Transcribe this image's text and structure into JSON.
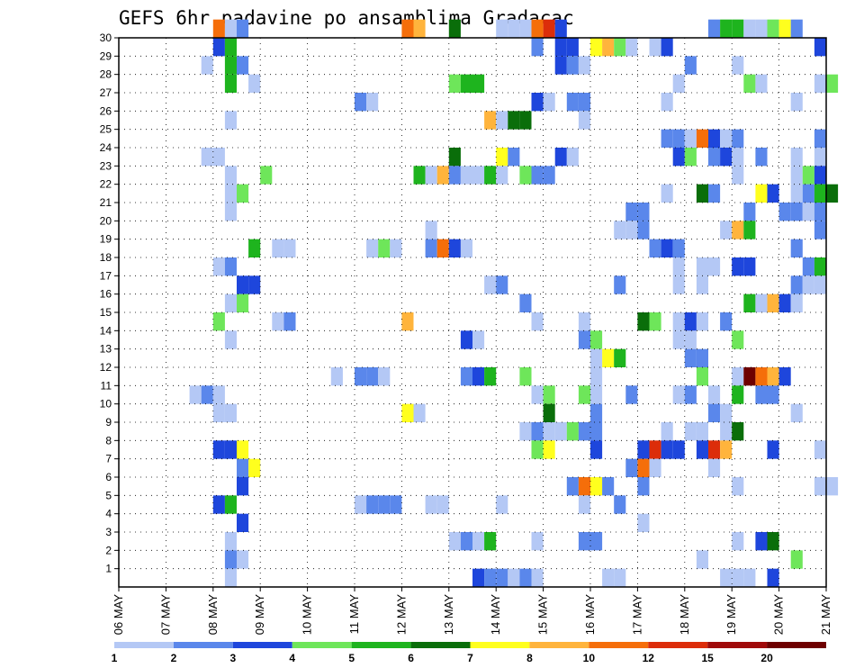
{
  "chart_data": {
    "type": "heatmap",
    "title": "GEFS 6hr padavine po ansamblima Gradacac",
    "xlabel": "",
    "ylabel": "",
    "x_ticks": [
      "06 MAY",
      "07 MAY",
      "08 MAY",
      "09 MAY",
      "10 MAY",
      "11 MAY",
      "12 MAY",
      "13 MAY",
      "14 MAY",
      "15 MAY",
      "16 MAY",
      "17 MAY",
      "18 MAY",
      "19 MAY",
      "20 MAY",
      "21 MAY"
    ],
    "y_ticks": [
      1,
      2,
      3,
      4,
      5,
      6,
      7,
      8,
      9,
      10,
      11,
      12,
      13,
      14,
      15,
      16,
      17,
      18,
      19,
      20,
      21,
      22,
      23,
      24,
      25,
      26,
      27,
      28,
      29,
      30
    ],
    "ylim": [
      0,
      30
    ],
    "steps_per_day": 4,
    "grid": true,
    "legend": {
      "position": "bottom",
      "levels": [
        1,
        2,
        3,
        4,
        5,
        6,
        7,
        8,
        10,
        12,
        15,
        20
      ],
      "colors": [
        "#b4c8f5",
        "#5a87eb",
        "#1e46dc",
        "#6ee65a",
        "#1eb41e",
        "#0a6e0a",
        "#ffff1e",
        "#ffb43c",
        "#f56e0a",
        "#dc2d0a",
        "#a00a0a",
        "#6e0000"
      ]
    },
    "colors": [
      "#b4c8f5",
      "#5a87eb",
      "#1e46dc",
      "#6ee65a",
      "#1eb41e",
      "#0a6e0a",
      "#ffff1e",
      "#ffb43c",
      "#f56e0a",
      "#dc2d0a",
      "#a00a0a",
      "#6e0000"
    ],
    "cells": [
      [
        8.0,
        30,
        9
      ],
      [
        8.25,
        30,
        1
      ],
      [
        8.5,
        30,
        2
      ],
      [
        12.0,
        30,
        9
      ],
      [
        12.25,
        30,
        8
      ],
      [
        13.0,
        30,
        6
      ],
      [
        14.0,
        30,
        1
      ],
      [
        14.25,
        30,
        1
      ],
      [
        14.5,
        30,
        1
      ],
      [
        14.75,
        30,
        9
      ],
      [
        15.0,
        30,
        10
      ],
      [
        15.25,
        30,
        3
      ],
      [
        18.5,
        30,
        2
      ],
      [
        18.75,
        30,
        5
      ],
      [
        19.0,
        30,
        5
      ],
      [
        19.25,
        30,
        1
      ],
      [
        19.5,
        30,
        1
      ],
      [
        19.75,
        30,
        4
      ],
      [
        20.0,
        30,
        7
      ],
      [
        20.25,
        30,
        2
      ],
      [
        8.0,
        29,
        3
      ],
      [
        8.25,
        29,
        5
      ],
      [
        14.75,
        29,
        2
      ],
      [
        15.25,
        29,
        3
      ],
      [
        15.5,
        29,
        3
      ],
      [
        16.0,
        29,
        7
      ],
      [
        16.25,
        29,
        8
      ],
      [
        16.5,
        29,
        4
      ],
      [
        16.75,
        29,
        1
      ],
      [
        17.25,
        29,
        1
      ],
      [
        17.5,
        29,
        3
      ],
      [
        20.75,
        29,
        3
      ],
      [
        7.75,
        28,
        1
      ],
      [
        8.25,
        28,
        5
      ],
      [
        8.5,
        28,
        2
      ],
      [
        15.25,
        28,
        3
      ],
      [
        15.5,
        28,
        2
      ],
      [
        15.75,
        28,
        1
      ],
      [
        18.0,
        28,
        2
      ],
      [
        19.0,
        28,
        1
      ],
      [
        8.25,
        27,
        5
      ],
      [
        8.75,
        27,
        1
      ],
      [
        13.0,
        27,
        4
      ],
      [
        13.25,
        27,
        5
      ],
      [
        13.5,
        27,
        5
      ],
      [
        17.75,
        27,
        1
      ],
      [
        19.25,
        27,
        4
      ],
      [
        19.5,
        27,
        1
      ],
      [
        20.75,
        27,
        1
      ],
      [
        21.0,
        27,
        4
      ],
      [
        11.0,
        26,
        2
      ],
      [
        11.25,
        26,
        1
      ],
      [
        14.75,
        26,
        3
      ],
      [
        15.0,
        26,
        1
      ],
      [
        15.5,
        26,
        2
      ],
      [
        15.75,
        26,
        2
      ],
      [
        17.5,
        26,
        1
      ],
      [
        20.25,
        26,
        1
      ],
      [
        8.25,
        25,
        1
      ],
      [
        13.75,
        25,
        8
      ],
      [
        14.0,
        25,
        1
      ],
      [
        14.25,
        25,
        6
      ],
      [
        14.5,
        25,
        6
      ],
      [
        15.75,
        25,
        1
      ],
      [
        17.5,
        24,
        2
      ],
      [
        17.75,
        24,
        2
      ],
      [
        18.0,
        24,
        1
      ],
      [
        18.25,
        24,
        9
      ],
      [
        18.5,
        24,
        3
      ],
      [
        18.75,
        24,
        1
      ],
      [
        19.0,
        24,
        2
      ],
      [
        20.75,
        24,
        2
      ],
      [
        7.75,
        23,
        1
      ],
      [
        8.0,
        23,
        1
      ],
      [
        13.0,
        23,
        6
      ],
      [
        14.0,
        23,
        7
      ],
      [
        14.25,
        23,
        2
      ],
      [
        15.25,
        23,
        3
      ],
      [
        15.5,
        23,
        1
      ],
      [
        17.75,
        23,
        3
      ],
      [
        18.0,
        23,
        4
      ],
      [
        18.5,
        23,
        2
      ],
      [
        18.75,
        23,
        3
      ],
      [
        19.0,
        23,
        1
      ],
      [
        19.5,
        23,
        2
      ],
      [
        20.25,
        23,
        1
      ],
      [
        20.75,
        23,
        1
      ],
      [
        8.25,
        22,
        1
      ],
      [
        9.0,
        22,
        4
      ],
      [
        12.25,
        22,
        5
      ],
      [
        12.5,
        22,
        1
      ],
      [
        12.75,
        22,
        8
      ],
      [
        13.0,
        22,
        2
      ],
      [
        13.25,
        22,
        1
      ],
      [
        13.5,
        22,
        1
      ],
      [
        13.75,
        22,
        5
      ],
      [
        14.0,
        22,
        1
      ],
      [
        14.5,
        22,
        4
      ],
      [
        14.75,
        22,
        2
      ],
      [
        15.0,
        22,
        2
      ],
      [
        19.0,
        22,
        1
      ],
      [
        20.25,
        22,
        1
      ],
      [
        20.5,
        22,
        4
      ],
      [
        20.75,
        22,
        3
      ],
      [
        8.25,
        21,
        1
      ],
      [
        8.5,
        21,
        4
      ],
      [
        17.5,
        21,
        1
      ],
      [
        18.25,
        21,
        6
      ],
      [
        18.5,
        21,
        2
      ],
      [
        19.5,
        21,
        7
      ],
      [
        19.75,
        21,
        3
      ],
      [
        20.25,
        21,
        1
      ],
      [
        20.5,
        21,
        2
      ],
      [
        20.75,
        21,
        5
      ],
      [
        21.0,
        21,
        6
      ],
      [
        8.25,
        20,
        1
      ],
      [
        16.75,
        20,
        2
      ],
      [
        17.0,
        20,
        2
      ],
      [
        19.25,
        20,
        2
      ],
      [
        20.0,
        20,
        2
      ],
      [
        20.25,
        20,
        2
      ],
      [
        20.5,
        20,
        1
      ],
      [
        20.75,
        20,
        2
      ],
      [
        12.5,
        19,
        1
      ],
      [
        16.5,
        19,
        1
      ],
      [
        16.75,
        19,
        1
      ],
      [
        17.0,
        19,
        2
      ],
      [
        18.75,
        19,
        1
      ],
      [
        19.0,
        19,
        8
      ],
      [
        19.25,
        19,
        5
      ],
      [
        20.75,
        19,
        2
      ],
      [
        8.75,
        18,
        5
      ],
      [
        9.25,
        18,
        1
      ],
      [
        9.5,
        18,
        1
      ],
      [
        11.25,
        18,
        1
      ],
      [
        11.5,
        18,
        4
      ],
      [
        11.75,
        18,
        1
      ],
      [
        12.5,
        18,
        2
      ],
      [
        12.75,
        18,
        9
      ],
      [
        13.0,
        18,
        3
      ],
      [
        13.25,
        18,
        1
      ],
      [
        17.25,
        18,
        2
      ],
      [
        17.5,
        18,
        3
      ],
      [
        17.75,
        18,
        2
      ],
      [
        20.25,
        18,
        2
      ],
      [
        8.0,
        17,
        1
      ],
      [
        8.25,
        17,
        2
      ],
      [
        17.75,
        17,
        1
      ],
      [
        18.25,
        17,
        1
      ],
      [
        18.5,
        17,
        1
      ],
      [
        19.0,
        17,
        3
      ],
      [
        19.25,
        17,
        3
      ],
      [
        20.5,
        17,
        2
      ],
      [
        20.75,
        17,
        5
      ],
      [
        8.5,
        16,
        3
      ],
      [
        8.75,
        16,
        3
      ],
      [
        13.75,
        16,
        1
      ],
      [
        14.0,
        16,
        2
      ],
      [
        16.5,
        16,
        2
      ],
      [
        17.75,
        16,
        1
      ],
      [
        18.25,
        16,
        1
      ],
      [
        20.25,
        16,
        2
      ],
      [
        20.5,
        16,
        1
      ],
      [
        20.75,
        16,
        1
      ],
      [
        8.25,
        15,
        1
      ],
      [
        8.5,
        15,
        4
      ],
      [
        14.5,
        15,
        2
      ],
      [
        19.25,
        15,
        5
      ],
      [
        19.5,
        15,
        1
      ],
      [
        19.75,
        15,
        8
      ],
      [
        20.0,
        15,
        3
      ],
      [
        20.25,
        15,
        1
      ],
      [
        8.0,
        14,
        4
      ],
      [
        9.25,
        14,
        1
      ],
      [
        9.5,
        14,
        2
      ],
      [
        12.0,
        14,
        8
      ],
      [
        14.75,
        14,
        1
      ],
      [
        15.75,
        14,
        1
      ],
      [
        17.0,
        14,
        6
      ],
      [
        17.25,
        14,
        4
      ],
      [
        17.75,
        14,
        1
      ],
      [
        18.0,
        14,
        3
      ],
      [
        18.25,
        14,
        1
      ],
      [
        18.75,
        14,
        2
      ],
      [
        8.25,
        13,
        1
      ],
      [
        13.25,
        13,
        3
      ],
      [
        13.5,
        13,
        1
      ],
      [
        15.75,
        13,
        2
      ],
      [
        16.0,
        13,
        4
      ],
      [
        17.75,
        13,
        1
      ],
      [
        18.0,
        13,
        1
      ],
      [
        19.0,
        13,
        4
      ],
      [
        16.0,
        12,
        1
      ],
      [
        16.25,
        12,
        7
      ],
      [
        16.5,
        12,
        5
      ],
      [
        18.0,
        12,
        2
      ],
      [
        18.25,
        12,
        2
      ],
      [
        10.5,
        11,
        1
      ],
      [
        11.0,
        11,
        2
      ],
      [
        11.25,
        11,
        2
      ],
      [
        11.5,
        11,
        1
      ],
      [
        13.25,
        11,
        2
      ],
      [
        13.5,
        11,
        3
      ],
      [
        13.75,
        11,
        5
      ],
      [
        14.5,
        11,
        4
      ],
      [
        16.0,
        11,
        1
      ],
      [
        18.25,
        11,
        4
      ],
      [
        19.0,
        11,
        1
      ],
      [
        19.25,
        11,
        12
      ],
      [
        19.5,
        11,
        9
      ],
      [
        19.75,
        11,
        8
      ],
      [
        20.0,
        11,
        3
      ],
      [
        7.5,
        10,
        1
      ],
      [
        7.75,
        10,
        2
      ],
      [
        8.0,
        10,
        1
      ],
      [
        14.75,
        10,
        1
      ],
      [
        15.0,
        10,
        4
      ],
      [
        15.75,
        10,
        4
      ],
      [
        16.0,
        10,
        1
      ],
      [
        16.75,
        10,
        2
      ],
      [
        17.75,
        10,
        1
      ],
      [
        18.0,
        10,
        2
      ],
      [
        18.5,
        10,
        1
      ],
      [
        19.0,
        10,
        5
      ],
      [
        19.5,
        10,
        2
      ],
      [
        19.75,
        10,
        2
      ],
      [
        8.0,
        9,
        1
      ],
      [
        8.25,
        9,
        1
      ],
      [
        12.0,
        9,
        7
      ],
      [
        12.25,
        9,
        1
      ],
      [
        15.0,
        9,
        6
      ],
      [
        16.0,
        9,
        2
      ],
      [
        18.5,
        9,
        2
      ],
      [
        18.75,
        9,
        1
      ],
      [
        20.25,
        9,
        1
      ],
      [
        14.5,
        8,
        1
      ],
      [
        14.75,
        8,
        2
      ],
      [
        15.0,
        8,
        1
      ],
      [
        15.25,
        8,
        1
      ],
      [
        15.5,
        8,
        4
      ],
      [
        15.75,
        8,
        2
      ],
      [
        16.0,
        8,
        2
      ],
      [
        17.5,
        8,
        1
      ],
      [
        18.0,
        8,
        1
      ],
      [
        18.25,
        8,
        1
      ],
      [
        18.75,
        8,
        1
      ],
      [
        19.0,
        8,
        6
      ],
      [
        8.0,
        7,
        3
      ],
      [
        8.25,
        7,
        3
      ],
      [
        8.5,
        7,
        7
      ],
      [
        14.75,
        7,
        4
      ],
      [
        15.0,
        7,
        7
      ],
      [
        16.0,
        7,
        3
      ],
      [
        17.0,
        7,
        3
      ],
      [
        17.25,
        7,
        10
      ],
      [
        17.5,
        7,
        3
      ],
      [
        17.75,
        7,
        3
      ],
      [
        18.25,
        7,
        3
      ],
      [
        18.5,
        7,
        10
      ],
      [
        18.75,
        7,
        8
      ],
      [
        19.75,
        7,
        3
      ],
      [
        20.75,
        7,
        1
      ],
      [
        8.5,
        6,
        2
      ],
      [
        8.75,
        6,
        7
      ],
      [
        16.75,
        6,
        2
      ],
      [
        17.0,
        6,
        9
      ],
      [
        17.25,
        6,
        1
      ],
      [
        18.5,
        6,
        1
      ],
      [
        8.5,
        5,
        3
      ],
      [
        15.5,
        5,
        2
      ],
      [
        15.75,
        5,
        9
      ],
      [
        16.0,
        5,
        7
      ],
      [
        16.25,
        5,
        2
      ],
      [
        17.0,
        5,
        2
      ],
      [
        19.0,
        5,
        1
      ],
      [
        20.75,
        5,
        1
      ],
      [
        21.0,
        5,
        1
      ],
      [
        8.0,
        4,
        3
      ],
      [
        8.25,
        4,
        5
      ],
      [
        11.0,
        4,
        1
      ],
      [
        11.25,
        4,
        2
      ],
      [
        11.5,
        4,
        2
      ],
      [
        11.75,
        4,
        2
      ],
      [
        12.5,
        4,
        1
      ],
      [
        12.75,
        4,
        1
      ],
      [
        14.0,
        4,
        1
      ],
      [
        15.75,
        4,
        1
      ],
      [
        16.5,
        4,
        2
      ],
      [
        8.5,
        3,
        3
      ],
      [
        17.0,
        3,
        1
      ],
      [
        8.25,
        2,
        1
      ],
      [
        13.0,
        2,
        1
      ],
      [
        13.25,
        2,
        2
      ],
      [
        13.5,
        2,
        1
      ],
      [
        13.75,
        2,
        5
      ],
      [
        14.75,
        2,
        1
      ],
      [
        15.75,
        2,
        2
      ],
      [
        16.0,
        2,
        2
      ],
      [
        19.0,
        2,
        1
      ],
      [
        19.5,
        2,
        3
      ],
      [
        19.75,
        2,
        6
      ],
      [
        8.25,
        1,
        2
      ],
      [
        8.5,
        1,
        1
      ],
      [
        18.25,
        1,
        1
      ],
      [
        20.25,
        1,
        4
      ],
      [
        8.25,
        0,
        1
      ],
      [
        13.5,
        0,
        3
      ],
      [
        13.75,
        0,
        2
      ],
      [
        14.0,
        0,
        2
      ],
      [
        14.25,
        0,
        1
      ],
      [
        14.5,
        0,
        2
      ],
      [
        14.75,
        0,
        1
      ],
      [
        16.25,
        0,
        1
      ],
      [
        16.5,
        0,
        1
      ],
      [
        18.75,
        0,
        1
      ],
      [
        19.0,
        0,
        1
      ],
      [
        19.25,
        0,
        1
      ],
      [
        19.75,
        0,
        3
      ]
    ]
  }
}
